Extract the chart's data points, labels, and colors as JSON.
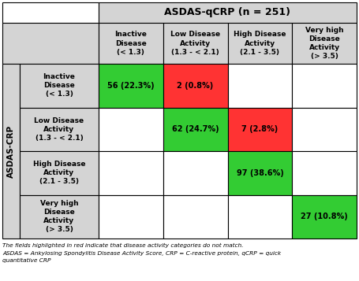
{
  "title": "ASDAS-qCRP (n = 251)",
  "col_headers": [
    "Inactive\nDisease\n(< 1.3)",
    "Low Disease\nActivity\n(1.3 - < 2.1)",
    "High Disease\nActivity\n(2.1 - 3.5)",
    "Very high\nDisease\nActivity\n(> 3.5)"
  ],
  "row_headers": [
    "Inactive\nDisease\n(< 1.3)",
    "Low Disease\nActivity\n(1.3 - < 2.1)",
    "High Disease\nActivity\n(2.1 - 3.5)",
    "Very high\nDisease\nActivity\n(> 3.5)"
  ],
  "y_label": "ASDAS-CRP",
  "cell_data": [
    [
      "56 (22.3%)",
      "2 (0.8%)",
      "",
      ""
    ],
    [
      "",
      "62 (24.7%)",
      "7 (2.8%)",
      ""
    ],
    [
      "",
      "",
      "97 (38.6%)",
      ""
    ],
    [
      "",
      "",
      "",
      "27 (10.8%)"
    ]
  ],
  "cell_colors": [
    [
      "#33cc33",
      "#ff3333",
      "#ffffff",
      "#ffffff"
    ],
    [
      "#ffffff",
      "#33cc33",
      "#ff3333",
      "#ffffff"
    ],
    [
      "#ffffff",
      "#ffffff",
      "#33cc33",
      "#ffffff"
    ],
    [
      "#ffffff",
      "#ffffff",
      "#ffffff",
      "#33cc33"
    ]
  ],
  "header_bg": "#d4d4d4",
  "row_label_bg": "#d4d4d4",
  "border_color": "#000000",
  "footnote1": "The fields highlighted in red indicate that disease activity categories do not match.",
  "footnote2": "ASDAS = Ankylosing Spondylitis Disease Activity Score, CRP = C-reactive protein, qCRP = quick",
  "footnote3": "quantitative CRP"
}
